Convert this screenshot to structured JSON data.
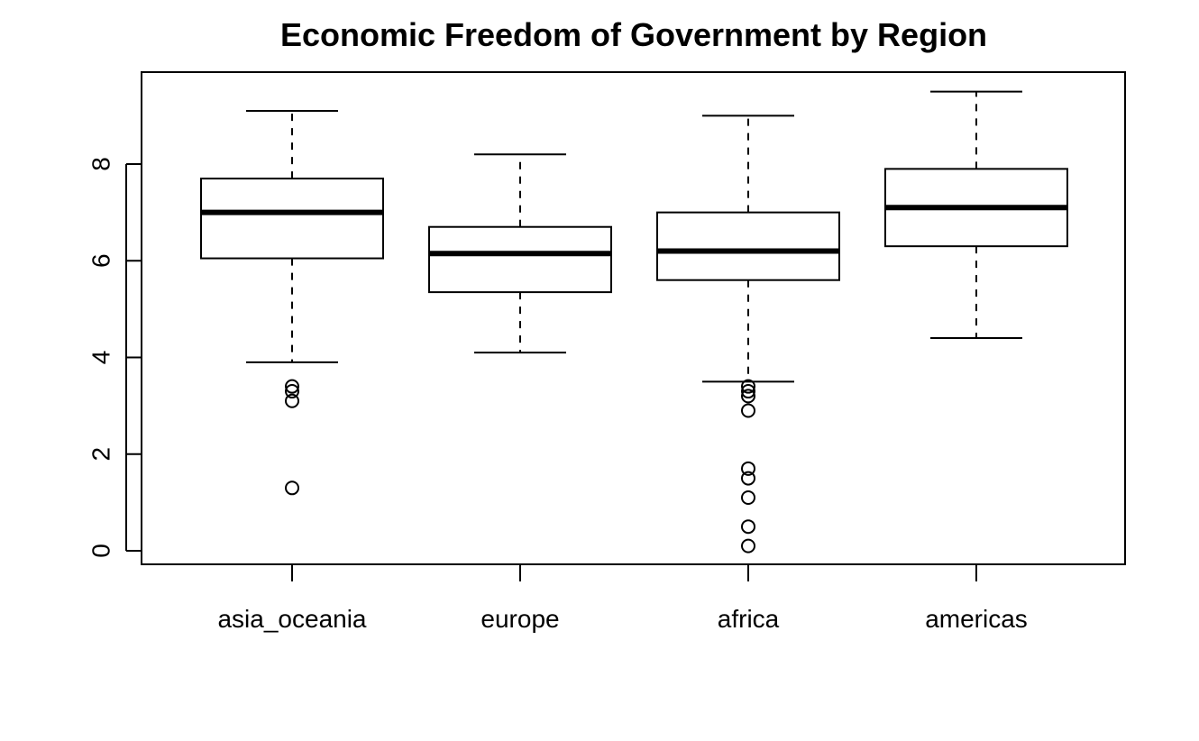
{
  "chart_data": {
    "type": "boxplot",
    "title": "Economic Freedom of Government by Region",
    "xlabel": "",
    "ylabel": "",
    "ylim": [
      -0.3,
      9.9
    ],
    "yticks": [
      0,
      2,
      4,
      6,
      8
    ],
    "grid": false,
    "categories": [
      "asia_oceania",
      "europe",
      "africa",
      "americas"
    ],
    "boxes": [
      {
        "name": "asia_oceania",
        "whisker_low": 3.9,
        "q1": 6.05,
        "median": 7.0,
        "q3": 7.7,
        "whisker_high": 9.1,
        "outliers": [
          3.4,
          3.3,
          3.1,
          1.3
        ]
      },
      {
        "name": "europe",
        "whisker_low": 4.1,
        "q1": 5.35,
        "median": 6.15,
        "q3": 6.7,
        "whisker_high": 8.2,
        "outliers": []
      },
      {
        "name": "africa",
        "whisker_low": 3.5,
        "q1": 5.6,
        "median": 6.2,
        "q3": 7.0,
        "whisker_high": 9.0,
        "outliers": [
          3.4,
          3.3,
          3.2,
          2.9,
          1.7,
          1.5,
          1.1,
          0.5,
          0.1
        ]
      },
      {
        "name": "americas",
        "whisker_low": 4.4,
        "q1": 6.3,
        "median": 7.1,
        "q3": 7.9,
        "whisker_high": 9.5,
        "outliers": []
      }
    ]
  }
}
